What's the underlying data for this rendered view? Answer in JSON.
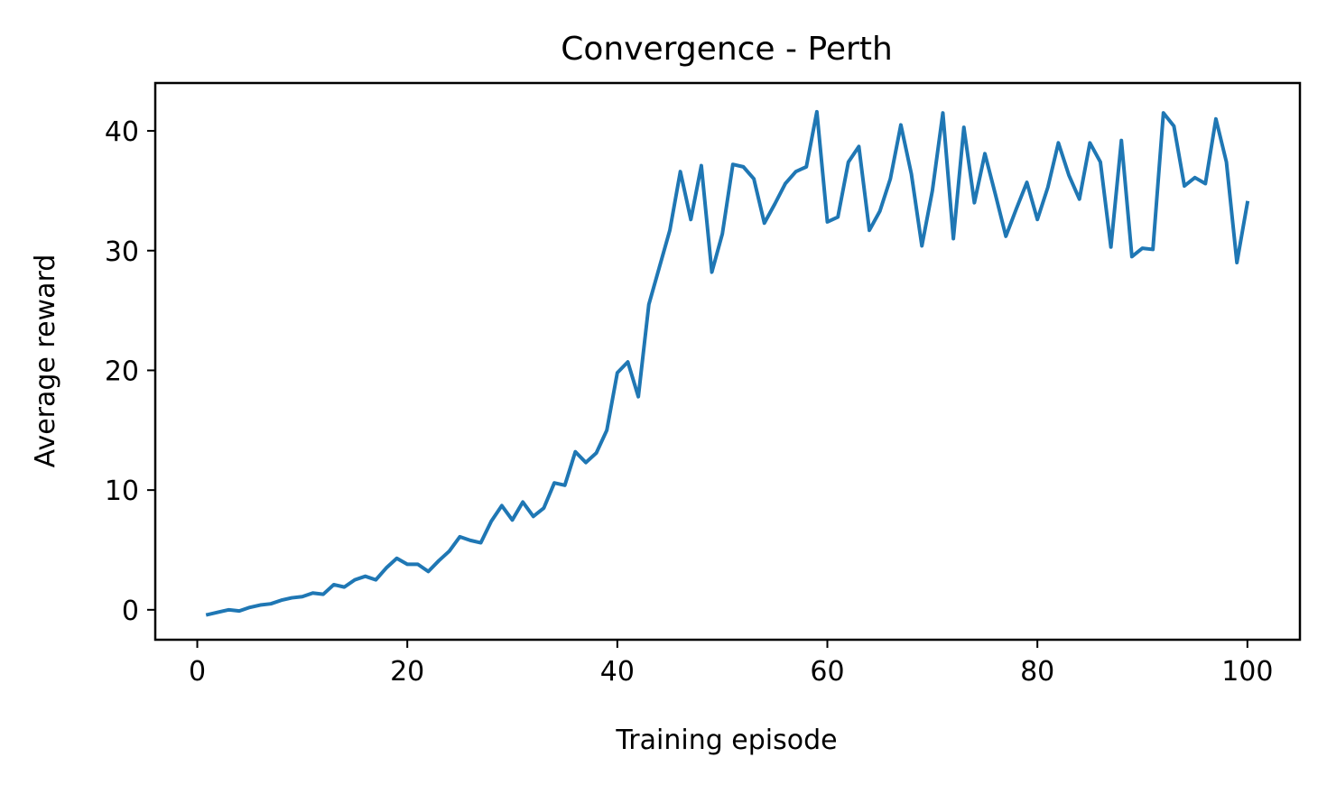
{
  "chart_data": {
    "type": "line",
    "title": "Convergence - Perth",
    "xlabel": "Training episode",
    "ylabel": "Average reward",
    "xlim": [
      -4,
      105
    ],
    "ylim": [
      -2.5,
      44
    ],
    "xticks": [
      0,
      20,
      40,
      60,
      80,
      100
    ],
    "yticks": [
      0,
      10,
      20,
      30,
      40
    ],
    "grid": false,
    "legend": "none",
    "series": [
      {
        "color": "#1f77b4",
        "x": [
          1,
          2,
          3,
          4,
          5,
          6,
          7,
          8,
          9,
          10,
          11,
          12,
          13,
          14,
          15,
          16,
          17,
          18,
          19,
          20,
          21,
          22,
          23,
          24,
          25,
          26,
          27,
          28,
          29,
          30,
          31,
          32,
          33,
          34,
          35,
          36,
          37,
          38,
          39,
          40,
          41,
          42,
          43,
          44,
          45,
          46,
          47,
          48,
          49,
          50,
          51,
          52,
          53,
          54,
          55,
          56,
          57,
          58,
          59,
          60,
          61,
          62,
          63,
          64,
          65,
          66,
          67,
          68,
          69,
          70,
          71,
          72,
          73,
          74,
          75,
          76,
          77,
          78,
          79,
          80,
          81,
          82,
          83,
          84,
          85,
          86,
          87,
          88,
          89,
          90,
          91,
          92,
          93,
          94,
          95,
          96,
          97,
          98,
          99,
          100
        ],
        "y": [
          -0.4,
          -0.2,
          0.0,
          -0.1,
          0.2,
          0.4,
          0.5,
          0.8,
          1.0,
          1.1,
          1.4,
          1.3,
          2.1,
          1.9,
          2.5,
          2.8,
          2.5,
          3.5,
          4.3,
          3.8,
          3.8,
          3.2,
          4.1,
          4.9,
          6.1,
          5.8,
          5.6,
          7.4,
          8.7,
          7.5,
          9.0,
          7.8,
          8.5,
          10.6,
          10.4,
          13.2,
          12.3,
          13.1,
          15.0,
          19.8,
          20.7,
          17.8,
          25.5,
          28.6,
          31.7,
          36.6,
          32.6,
          37.1,
          28.2,
          31.4,
          37.2,
          37.0,
          36.0,
          32.3,
          33.9,
          35.6,
          36.6,
          37.0,
          41.6,
          32.4,
          32.8,
          37.4,
          38.7,
          31.7,
          33.3,
          36.0,
          40.5,
          36.4,
          30.4,
          35.0,
          41.5,
          31.0,
          40.3,
          34.0,
          38.1,
          34.7,
          31.2,
          33.5,
          35.7,
          32.6,
          35.3,
          39.0,
          36.3,
          34.3,
          39.0,
          37.4,
          30.3,
          39.2,
          29.5,
          30.2,
          30.1,
          41.5,
          40.4,
          35.4,
          36.1,
          35.6,
          41.0,
          37.4,
          29.0,
          34.0
        ]
      }
    ]
  }
}
